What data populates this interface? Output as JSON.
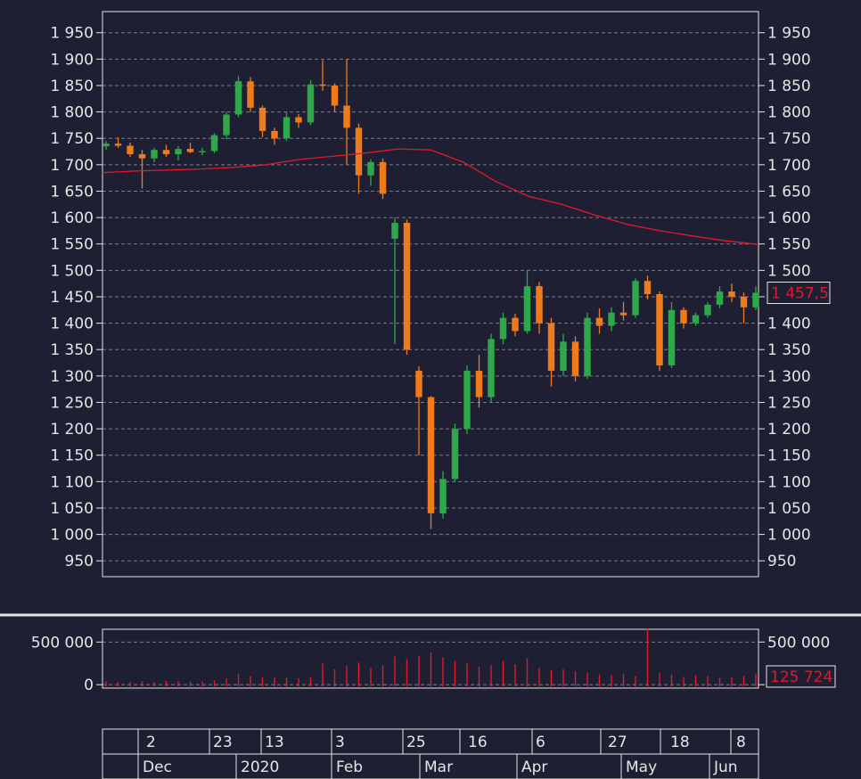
{
  "chart_data": {
    "type": "candlestick",
    "grid": true,
    "price_axis": {
      "ylim": [
        920,
        1990
      ],
      "ticks": [
        950,
        1000,
        1050,
        1100,
        1150,
        1200,
        1250,
        1300,
        1350,
        1400,
        1450,
        1500,
        1550,
        1600,
        1650,
        1700,
        1750,
        1800,
        1850,
        1900,
        1950
      ],
      "tick_labels": [
        "950",
        "1 000",
        "1 050",
        "1 100",
        "1 150",
        "1 200",
        "1 250",
        "1 300",
        "1 350",
        "1 400",
        "1 450",
        "1 500",
        "1 550",
        "1 600",
        "1 650",
        "1 700",
        "1 750",
        "1 800",
        "1 850",
        "1 900",
        "1 950"
      ],
      "last_value": 1457.5,
      "last_label": "1 457,5"
    },
    "moving_average": {
      "color": "#e0192b",
      "values": [
        1685,
        1688,
        1690,
        1692,
        1695,
        1700,
        1710,
        1716,
        1722,
        1730,
        1728,
        1705,
        1668,
        1640,
        1625,
        1605,
        1587,
        1575,
        1565,
        1556,
        1549
      ]
    },
    "candles": [
      [
        1735,
        1745,
        1728,
        1740
      ],
      [
        1740,
        1752,
        1732,
        1736
      ],
      [
        1736,
        1742,
        1715,
        1720
      ],
      [
        1720,
        1728,
        1655,
        1712
      ],
      [
        1712,
        1732,
        1705,
        1728
      ],
      [
        1728,
        1738,
        1715,
        1720
      ],
      [
        1720,
        1735,
        1708,
        1730
      ],
      [
        1730,
        1742,
        1722,
        1724
      ],
      [
        1724,
        1732,
        1718,
        1726
      ],
      [
        1726,
        1760,
        1722,
        1756
      ],
      [
        1756,
        1800,
        1748,
        1795
      ],
      [
        1795,
        1868,
        1790,
        1858
      ],
      [
        1858,
        1866,
        1800,
        1808
      ],
      [
        1808,
        1812,
        1752,
        1764
      ],
      [
        1764,
        1770,
        1738,
        1750
      ],
      [
        1750,
        1800,
        1745,
        1790
      ],
      [
        1790,
        1796,
        1770,
        1780
      ],
      [
        1780,
        1860,
        1775,
        1852
      ],
      [
        1852,
        1898,
        1840,
        1850
      ],
      [
        1850,
        1854,
        1800,
        1812
      ],
      [
        1812,
        1900,
        1700,
        1770
      ],
      [
        1770,
        1778,
        1645,
        1680
      ],
      [
        1680,
        1710,
        1660,
        1705
      ],
      [
        1705,
        1712,
        1635,
        1645
      ],
      [
        1560,
        1600,
        1360,
        1590
      ],
      [
        1590,
        1596,
        1340,
        1350
      ],
      [
        1310,
        1318,
        1150,
        1260
      ],
      [
        1260,
        1262,
        1010,
        1040
      ],
      [
        1040,
        1120,
        1030,
        1105
      ],
      [
        1105,
        1210,
        1100,
        1200
      ],
      [
        1200,
        1320,
        1190,
        1310
      ],
      [
        1310,
        1340,
        1240,
        1260
      ],
      [
        1260,
        1380,
        1250,
        1370
      ],
      [
        1370,
        1420,
        1360,
        1410
      ],
      [
        1410,
        1418,
        1375,
        1385
      ],
      [
        1385,
        1500,
        1380,
        1470
      ],
      [
        1470,
        1478,
        1380,
        1400
      ],
      [
        1400,
        1410,
        1280,
        1310
      ],
      [
        1310,
        1380,
        1300,
        1365
      ],
      [
        1365,
        1375,
        1290,
        1300
      ],
      [
        1300,
        1420,
        1295,
        1410
      ],
      [
        1410,
        1428,
        1380,
        1395
      ],
      [
        1395,
        1430,
        1385,
        1420
      ],
      [
        1420,
        1440,
        1405,
        1415
      ],
      [
        1415,
        1485,
        1410,
        1480
      ],
      [
        1480,
        1490,
        1445,
        1455
      ],
      [
        1455,
        1460,
        1310,
        1320
      ],
      [
        1320,
        1440,
        1315,
        1425
      ],
      [
        1425,
        1430,
        1390,
        1400
      ],
      [
        1400,
        1420,
        1395,
        1415
      ],
      [
        1415,
        1440,
        1410,
        1435
      ],
      [
        1435,
        1470,
        1428,
        1460
      ],
      [
        1460,
        1475,
        1440,
        1450
      ],
      [
        1450,
        1458,
        1400,
        1430
      ],
      [
        1430,
        1470,
        1425,
        1457.5
      ]
    ],
    "volume_axis": {
      "ylim": [
        -40000,
        650000
      ],
      "ticks": [
        0,
        500000
      ],
      "tick_labels": [
        "0",
        "500 000"
      ],
      "last_value": 125724,
      "last_label": "125 724"
    },
    "volume": [
      40000,
      35000,
      30000,
      38000,
      32000,
      45000,
      40000,
      35000,
      38000,
      50000,
      70000,
      130000,
      100000,
      90000,
      85000,
      80000,
      75000,
      90000,
      250000,
      180000,
      220000,
      260000,
      200000,
      230000,
      330000,
      300000,
      340000,
      380000,
      320000,
      280000,
      250000,
      210000,
      230000,
      280000,
      240000,
      310000,
      200000,
      170000,
      180000,
      160000,
      140000,
      120000,
      110000,
      130000,
      100000,
      660000,
      140000,
      120000,
      90000,
      110000,
      100000,
      80000,
      90000,
      100000,
      125724
    ],
    "x_axis": {
      "day_labels": [
        "2",
        "23",
        "13",
        "3",
        "25",
        "16",
        "6",
        "27",
        "18",
        "8"
      ],
      "month_labels": [
        "Dec",
        "2020",
        "Feb",
        "Mar",
        "Apr",
        "May",
        "Jun"
      ]
    },
    "colors": {
      "up": "#2ea84a",
      "down": "#f07b1a",
      "ma": "#e0192b",
      "volume": "#e0192b",
      "grid": "#9a9aaa",
      "background": "#1f1f33",
      "text": "#e6e6e6"
    }
  }
}
